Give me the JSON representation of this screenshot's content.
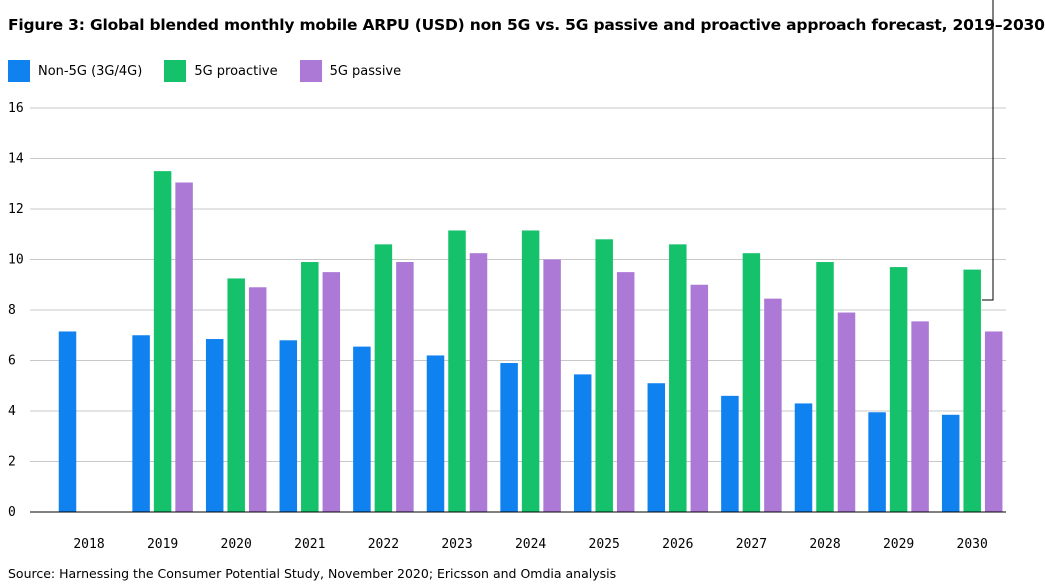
{
  "title": "Figure 3: Global blended monthly mobile ARPU (USD) non 5G vs. 5G passive and proactive approach forecast, 2019–2030",
  "source": "Source: Harnessing the Consumer Potential Study, November 2020; Ericsson and Omdia analysis",
  "colors": {
    "non5g": "#0f82f0",
    "proactive": "#15c26b",
    "passive": "#ac7ad6",
    "grid": "#c8c8c8",
    "axis": "#000000"
  },
  "chart_data": {
    "type": "bar",
    "categories": [
      "2018",
      "2019",
      "2020",
      "2021",
      "2022",
      "2023",
      "2024",
      "2025",
      "2026",
      "2027",
      "2028",
      "2029",
      "2030"
    ],
    "series": [
      {
        "name": "Non-5G (3G/4G)",
        "values": [
          7.15,
          7.0,
          6.85,
          6.8,
          6.55,
          6.2,
          5.9,
          5.45,
          5.1,
          4.6,
          4.3,
          3.95,
          3.85
        ]
      },
      {
        "name": "5G proactive",
        "values": [
          null,
          13.5,
          9.25,
          9.9,
          10.6,
          11.15,
          11.15,
          10.8,
          10.6,
          10.25,
          9.9,
          9.7,
          9.6
        ]
      },
      {
        "name": "5G passive",
        "values": [
          null,
          13.05,
          8.9,
          9.5,
          9.9,
          10.25,
          10.0,
          9.5,
          9.0,
          8.45,
          7.9,
          7.55,
          7.15
        ]
      }
    ],
    "yticks": [
      "0",
      "2",
      "4",
      "6",
      "8",
      "10",
      "12",
      "14",
      "16"
    ],
    "ylim": [
      0,
      16
    ],
    "grid": true,
    "legend": "top-left"
  }
}
